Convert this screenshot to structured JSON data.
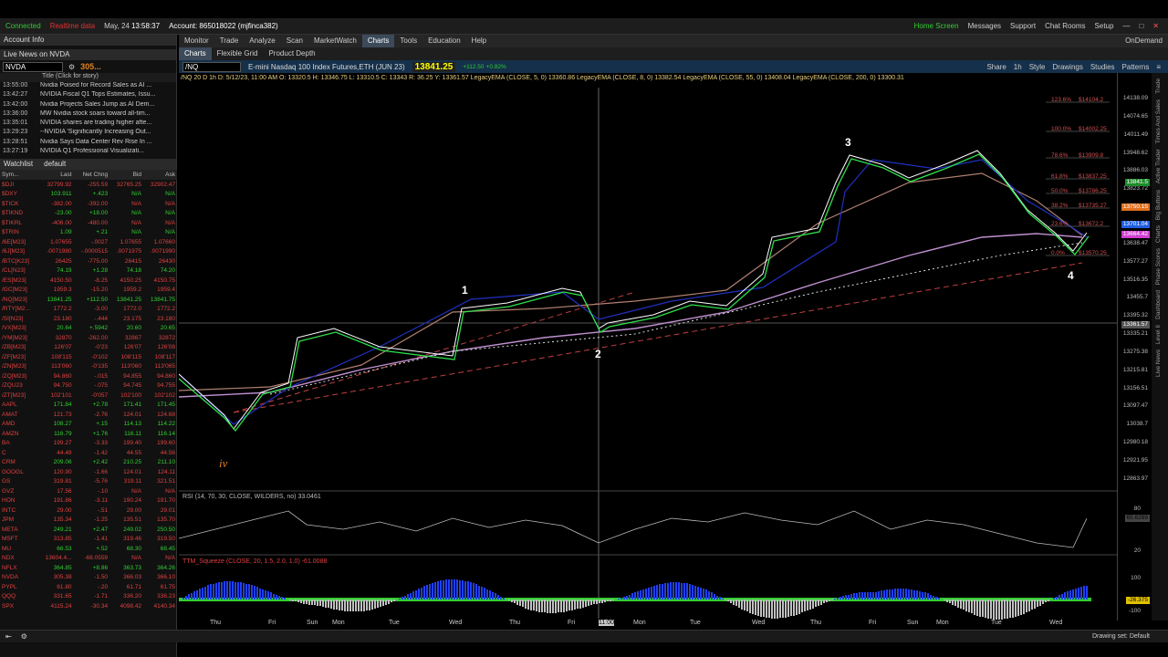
{
  "topbar": {
    "connected": "Connected",
    "realtime": "Realtime data",
    "date": "May, 24",
    "time": "13:58:37",
    "account": "Account: 865018022 (mjfinca382)",
    "home": "Home Screen",
    "messages": "Messages",
    "support": "Support",
    "chatrooms": "Chat Rooms",
    "setup": "Setup"
  },
  "nav": {
    "tabs": [
      "Monitor",
      "Trade",
      "Analyze",
      "Scan",
      "MarketWatch",
      "Charts",
      "Tools",
      "Education",
      "Help"
    ],
    "ondemand": "OnDemand"
  },
  "subnav": {
    "charts": "Charts",
    "flex": "Flexible Grid",
    "depth": "Product Depth"
  },
  "left": {
    "acct": "Account Info",
    "livenews": "Live News on NVDA",
    "symbol": "NVDA",
    "symprice": "305...",
    "newscol": "Title (Click for story)",
    "news": [
      [
        "13:55:00",
        "Nvidia Poised for Record Sales as AI ..."
      ],
      [
        "13:42:27",
        "NVIDIA Fiscal Q1 Tops Estimates, Issu..."
      ],
      [
        "13:42:00",
        "Nvidia Projects Sales Jump as AI Dem..."
      ],
      [
        "13:36:00",
        "MW Nvidia stock soars toward all-tim..."
      ],
      [
        "13:35:01",
        "NVIDIA shares are trading higher afte..."
      ],
      [
        "13:29:23",
        "--NVIDIA 'Significantly Increasing Out..."
      ],
      [
        "13:28:51",
        "Nvidia Says Data Center Rev Rise In ..."
      ],
      [
        "13:27:19",
        "NVIDIA Q1 Professional Visualizati..."
      ]
    ],
    "watchlist": "Watchlist",
    "wlname": "default",
    "cols": [
      "Sym...",
      "Last",
      "Net Chng",
      "Bid",
      "Ask"
    ],
    "rows": [
      [
        "$DJI",
        "32799.92",
        "-255.59",
        "32765.25",
        "32902.47"
      ],
      [
        "$DXY",
        "103.911",
        "+.423",
        "N/A",
        "N/A"
      ],
      [
        "$TICK",
        "-382.00",
        "-392.00",
        "N/A",
        "N/A"
      ],
      [
        "$TIKND",
        "-23.00",
        "+18.00",
        "N/A",
        "N/A"
      ],
      [
        "$TIKRL",
        "-406.00",
        "-480.00",
        "N/A",
        "N/A"
      ],
      [
        "$TRIN",
        "1.09",
        "+.21",
        "N/A",
        "N/A"
      ],
      [
        "/6E[M23]",
        "1.07655",
        "-.0027",
        "1.07655",
        "1.07660"
      ],
      [
        "/6J[M23]",
        ".0071980",
        "-.0000515",
        ".0071975",
        ".0071990"
      ],
      [
        "/BTC[K23]",
        "26425",
        "-775.00",
        "26415",
        "26430"
      ],
      [
        "/CL[N23]",
        "74.19",
        "+1.28",
        "74.18",
        "74.20"
      ],
      [
        "/ES[M23]",
        "4150.50",
        "-8.25",
        "4150.25",
        "4150.75"
      ],
      [
        "/GC[M23]",
        "1959.3",
        "-15.20",
        "1959.2",
        "1959.4"
      ],
      [
        "/NQ[M23]",
        "13841.25",
        "+112.50",
        "13841.25",
        "13841.75"
      ],
      [
        "/RTY[M2...",
        "1772.2",
        "-3.00",
        "1772.0",
        "1772.2"
      ],
      [
        "/SI[N23]",
        "23.180",
        "-.444",
        "23.175",
        "23.180"
      ],
      [
        "/VX[M23]",
        "20.64",
        "+.5942",
        "20.60",
        "20.65"
      ],
      [
        "/YM[M23]",
        "32870",
        "-262.00",
        "32867",
        "32872"
      ],
      [
        "/ZB[M23]",
        "126'07",
        "-0'23",
        "126'07",
        "126'08"
      ],
      [
        "/ZF[M23]",
        "108'115",
        "-0'102",
        "108'115",
        "108'117"
      ],
      [
        "/ZN[M23]",
        "113'060",
        "-0'135",
        "113'060",
        "113'065"
      ],
      [
        "/ZQ[M23]",
        "94.860",
        "-.015",
        "94.855",
        "94.860"
      ],
      [
        "/ZQU23",
        "94.750",
        "-.075",
        "94.745",
        "94.755"
      ],
      [
        "/ZT[M23]",
        "102'101",
        "-0'057",
        "102'100",
        "102'102"
      ],
      [
        "AAPL",
        "171.84",
        "+2.78",
        "171.41",
        "171.45"
      ],
      [
        "AMAT",
        "121.73",
        "-2.76",
        "124.01",
        "124.68"
      ],
      [
        "AMD",
        "108.27",
        "+.15",
        "114.13",
        "114.22"
      ],
      [
        "AMZN",
        "116.79",
        "+1.76",
        "116.11",
        "116.14"
      ],
      [
        "BA",
        "199.27",
        "-3.33",
        "199.40",
        "199.60"
      ],
      [
        "C",
        "44.49",
        "-1.42",
        "44.55",
        "44.56"
      ],
      [
        "CRM",
        "209.06",
        "+2.42",
        "210.25",
        "211.10"
      ],
      [
        "GOOGL",
        "120.90",
        "-1.66",
        "124.01",
        "124.11"
      ],
      [
        "GS",
        "319.81",
        "-5.76",
        "319.11",
        "321.51"
      ],
      [
        "GVZ",
        "17.56",
        "-.10",
        "N/A",
        "N/A"
      ],
      [
        "HON",
        "191.86",
        "-3.11",
        "190.24",
        "191.70"
      ],
      [
        "INTC",
        "29.00",
        "-.51",
        "29.00",
        "29.01"
      ],
      [
        "JPM",
        "135.34",
        "-1.25",
        "135.51",
        "135.70"
      ],
      [
        "META",
        "249.21",
        "+2.47",
        "249.02",
        "250.50"
      ],
      [
        "MSFT",
        "313.85",
        "-1.41",
        "319.46",
        "319.50"
      ],
      [
        "MU",
        "66.53",
        "+.52",
        "68.30",
        "68.45"
      ],
      [
        "NDX",
        "13604.4...",
        "-68.0559",
        "N/A",
        "N/A"
      ],
      [
        "NFLX",
        "364.85",
        "+8.86",
        "363.73",
        "364.26"
      ],
      [
        "NVDA",
        "305.38",
        "-1.50",
        "366.03",
        "366.10"
      ],
      [
        "PYPL",
        "61.80",
        "-.20",
        "61.71",
        "61.75"
      ],
      [
        "QQQ",
        "331.65",
        "-1.71",
        "336.20",
        "336.23"
      ],
      [
        "SPX",
        "4115.24",
        "-30.34",
        "4098.42",
        "4140.34"
      ]
    ]
  },
  "chart": {
    "symbol": "/NQ",
    "desc": "E-mini Nasdaq 100 Index Futures,ETH (JUN 23)",
    "price": "13841.25",
    "chg": "+112.50",
    "pct": "+0.82%",
    "share": "Share",
    "style": "Style",
    "drawings": "Drawings",
    "studies": "Studies",
    "patterns": "Patterns",
    "period": "1h",
    "studyline": "/NQ 20 D 1h  D: 5/12/23, 11:00 AM  O: 13320.5  H: 13346.75  L: 13310.5  C: 13343  R: 36.25  Y: 13361.57  LegacyEMA (CLOSE, 5, 0) 13360.86  LegacyEMA (CLOSE, 8, 0) 13382.54  LegacyEMA (CLOSE, 55, 0) 13408.04  LegacyEMA (CLOSE, 200, 0) 13300.31",
    "ylabels": [
      "14138.09",
      "14074.65",
      "14011.49",
      "13948.62",
      "13886.03",
      "13823.72",
      "13761.71",
      "13699.97",
      "13638.47",
      "13577.27",
      "13516.35",
      "13455.7",
      "13395.32",
      "13335.21",
      "13275.38",
      "13215.81",
      "13156.51",
      "13097.47",
      "13038.7",
      "12980.18",
      "12921.95",
      "12863.97"
    ],
    "tags": [
      [
        "13841.5",
        "#1e8c2a"
      ],
      [
        "13750.15",
        "#e07020"
      ],
      [
        "13701.04",
        "#2060e0"
      ],
      [
        "13664.42",
        "#d040d0"
      ],
      [
        "13361.57",
        "#555"
      ]
    ],
    "fib": [
      [
        "123.6%",
        "$14104.2"
      ],
      [
        "100.0%",
        "$14002.25"
      ],
      [
        "78.6%",
        "$13909.8"
      ],
      [
        "61.8%",
        "$13837.25"
      ],
      [
        "50.0%",
        "$13786.25"
      ],
      [
        "38.2%",
        "$13735.27"
      ],
      [
        "23.6%",
        "$13672.2"
      ],
      [
        "0.0%",
        "$13570.25"
      ]
    ],
    "waves": [
      "iv",
      "1",
      "2",
      "3",
      "4"
    ],
    "rsi": "RSI (14, 70, 30, CLOSE, WILDERS, no)  33.0461",
    "rsiv": "65.6289",
    "rsiaxis": [
      "80",
      "20"
    ],
    "squeeze": "TTM_Squeeze (CLOSE, 20, 1.5, 2.0, 1.0)  -61.0088",
    "sqv": "-26.375",
    "sqaxis": [
      "100",
      "-100"
    ],
    "xlabels": [
      "Thu",
      "Fri",
      "Sun",
      "Mon",
      "Tue",
      "Wed",
      "Thu",
      "Fri",
      "11:00",
      "Mon",
      "Tue",
      "Wed",
      "Thu",
      "Fri",
      "Sun",
      "Mon",
      "Tue",
      "Wed"
    ]
  },
  "rside": [
    "Trade",
    "Times And Sales",
    "Active Trader",
    "Big Buttons",
    "Charts",
    "Phase Scores",
    "Dashboard",
    "Level II",
    "Live News"
  ],
  "bottom": {
    "drawingset": "Drawing set: Default"
  }
}
